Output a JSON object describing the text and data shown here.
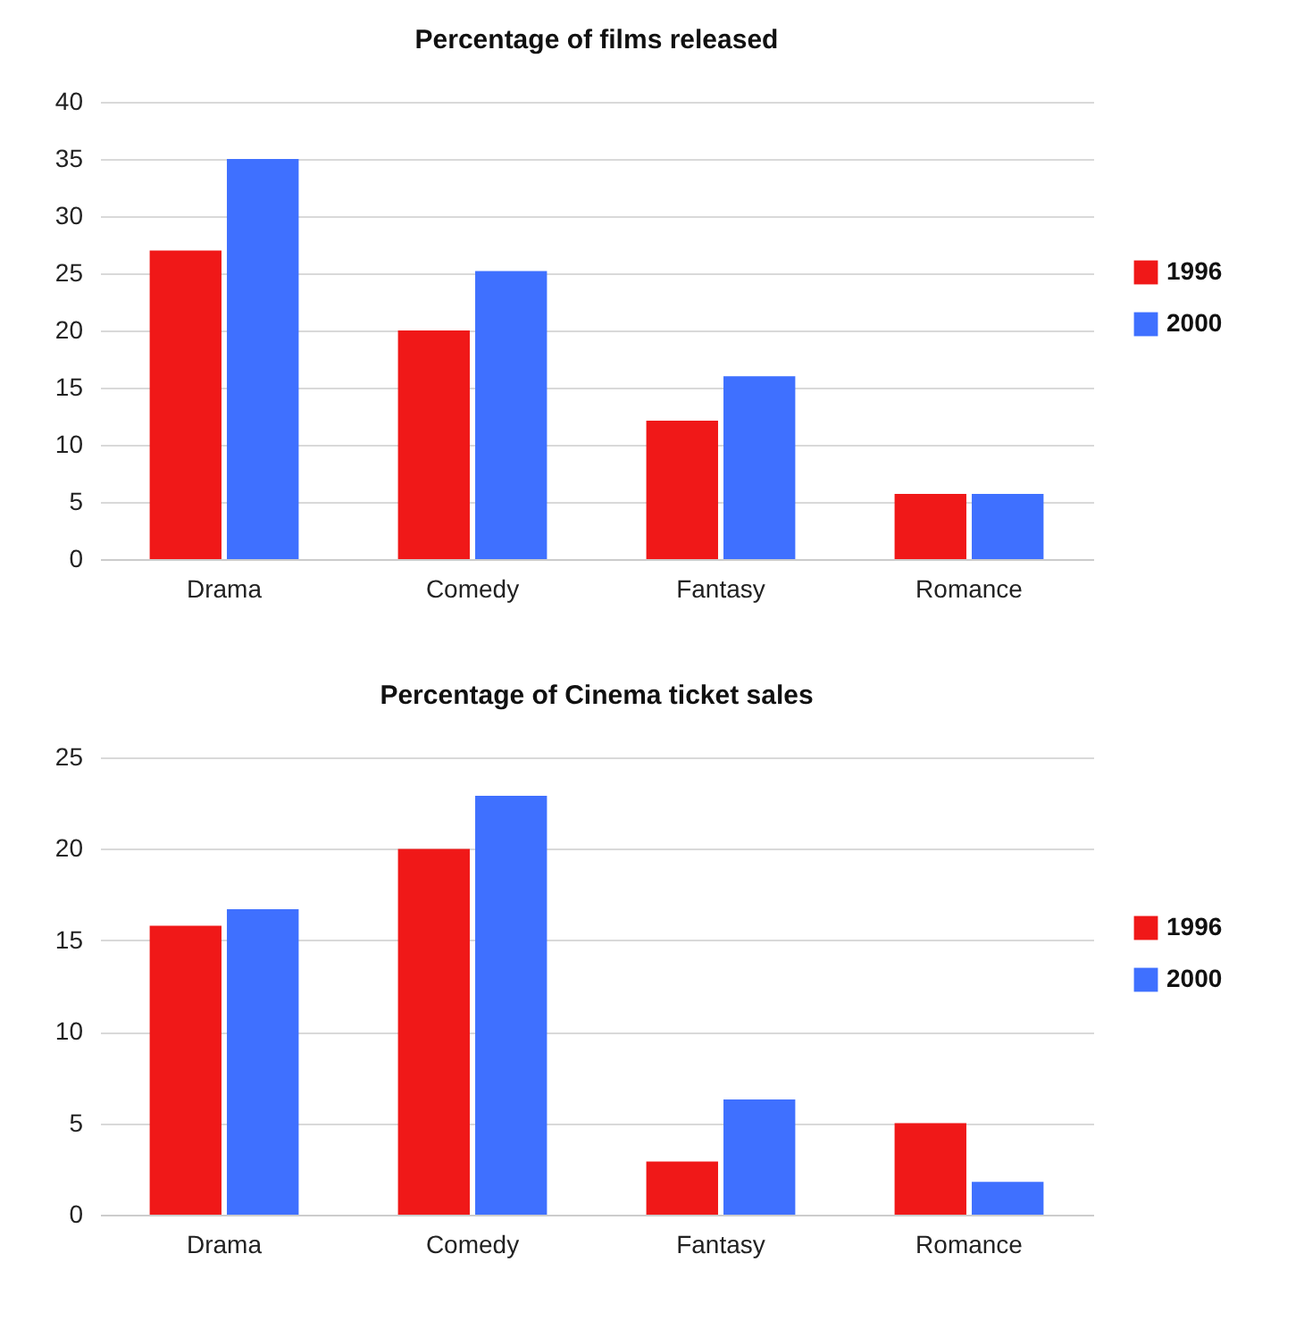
{
  "chart_data": [
    {
      "type": "bar",
      "title": "Percentage of films released",
      "categories": [
        "Drama",
        "Comedy",
        "Fantasy",
        "Romance"
      ],
      "series": [
        {
          "name": "1996",
          "color": "#f01818",
          "values": [
            27,
            20,
            12.1,
            5.7
          ]
        },
        {
          "name": "2000",
          "color": "#3f70ff",
          "values": [
            35,
            25.2,
            16,
            5.7
          ]
        }
      ],
      "ylim": [
        0,
        40
      ],
      "yticks": [
        0,
        5,
        10,
        15,
        20,
        25,
        30,
        35,
        40
      ],
      "grid": "y",
      "legend": "right"
    },
    {
      "type": "bar",
      "title": "Percentage of Cinema ticket sales",
      "categories": [
        "Drama",
        "Comedy",
        "Fantasy",
        "Romance"
      ],
      "series": [
        {
          "name": "1996",
          "color": "#f01818",
          "values": [
            15.8,
            20,
            2.9,
            5
          ]
        },
        {
          "name": "2000",
          "color": "#3f70ff",
          "values": [
            16.7,
            22.9,
            6.3,
            1.8
          ]
        }
      ],
      "ylim": [
        0,
        25
      ],
      "yticks": [
        0,
        5,
        10,
        15,
        20,
        25
      ],
      "grid": "y",
      "legend": "right"
    }
  ]
}
